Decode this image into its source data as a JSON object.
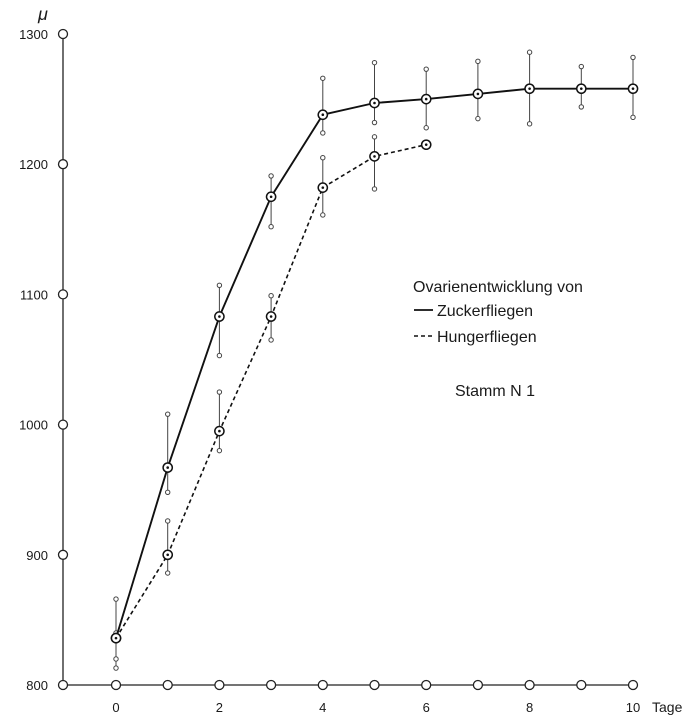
{
  "chart_data": {
    "type": "line",
    "title": "",
    "y_unit_label": "μ",
    "x_unit_label": "Tage",
    "xlim": [
      -1,
      10
    ],
    "ylim": [
      800,
      1300
    ],
    "x_ticks": [
      0,
      2,
      4,
      6,
      8,
      10
    ],
    "x_tick_labels": [
      "0",
      "2",
      "4",
      "6",
      "8",
      "10"
    ],
    "y_ticks": [
      800,
      900,
      1000,
      1100,
      1200,
      1300
    ],
    "y_tick_labels": [
      "800",
      "900",
      "1000",
      "1100",
      "1200",
      "1300"
    ],
    "legend": {
      "heading": "Ovarienentwicklung von",
      "placement": "right"
    },
    "annotation": "Stamm N 1",
    "series": [
      {
        "name": "Zuckerfliegen",
        "style": "solid",
        "x": [
          0,
          1,
          2,
          3,
          4,
          5,
          6,
          7,
          8,
          9,
          10
        ],
        "y": [
          836,
          967,
          1083,
          1175,
          1238,
          1247,
          1250,
          1254,
          1258,
          1258,
          1258
        ],
        "err_low": [
          813,
          948,
          1053,
          1152,
          1224,
          1232,
          1228,
          1235,
          1231,
          1244,
          1236
        ],
        "err_high": [
          866,
          1008,
          1107,
          1191,
          1266,
          1278,
          1273,
          1279,
          1286,
          1275,
          1282
        ]
      },
      {
        "name": "Hungerfliegen",
        "style": "dashed",
        "x": [
          0,
          1,
          2,
          3,
          4,
          5,
          6
        ],
        "y": [
          836,
          900,
          995,
          1083,
          1182,
          1206,
          1215
        ],
        "err_low": [
          820,
          886,
          980,
          1065,
          1161,
          1181,
          1215
        ],
        "err_high": [
          840,
          926,
          1025,
          1099,
          1205,
          1221,
          1215
        ]
      }
    ]
  }
}
